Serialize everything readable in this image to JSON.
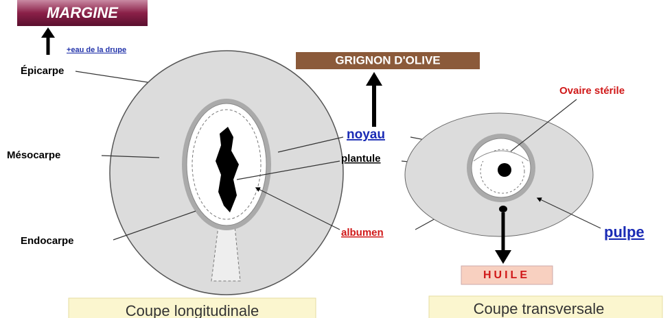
{
  "boxes": [
    {
      "label": "MARGINE"
    },
    {
      "label": "GRIGNON D'OLIVE"
    },
    {
      "label": "HUILE"
    },
    {
      "label": "Coupe longitudinale"
    },
    {
      "label": "Coupe transversale"
    }
  ],
  "labels": [
    {
      "label": "+eau de la drupe"
    },
    {
      "label": "Épicarpe"
    },
    {
      "label": "Mésocarpe"
    },
    {
      "label": "Endocarpe"
    },
    {
      "label": "noyau"
    },
    {
      "label": "plantule"
    },
    {
      "label": "albumen"
    },
    {
      "label": "Ovaire stérile"
    },
    {
      "label": "pulpe"
    }
  ]
}
